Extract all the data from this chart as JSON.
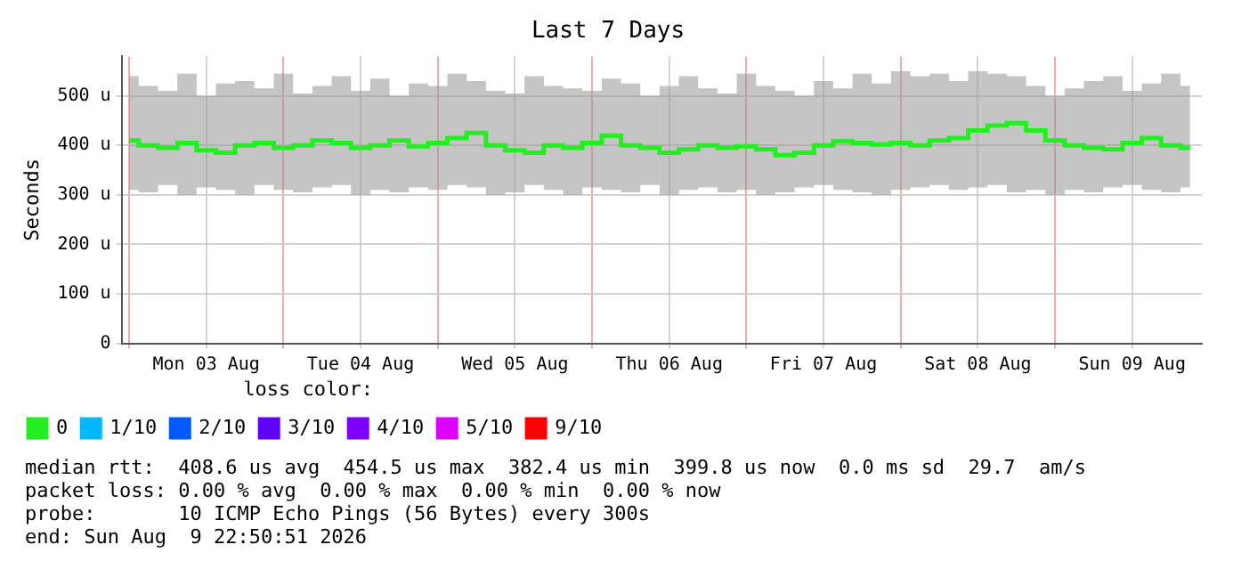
{
  "chart_data": {
    "type": "step",
    "title": "Last 7 Days",
    "ylabel": "Seconds",
    "legend_title": "loss color:",
    "legend": "bottom",
    "grid": true,
    "x": [
      "2026-08-03T00:00",
      "2026-08-03T03:00",
      "2026-08-03T06:00",
      "2026-08-03T09:00",
      "2026-08-03T12:00",
      "2026-08-03T15:00",
      "2026-08-03T18:00",
      "2026-08-03T21:00",
      "2026-08-04T00:00",
      "2026-08-04T03:00",
      "2026-08-04T06:00",
      "2026-08-04T09:00",
      "2026-08-04T12:00",
      "2026-08-04T15:00",
      "2026-08-04T18:00",
      "2026-08-04T21:00",
      "2026-08-05T00:00",
      "2026-08-05T03:00",
      "2026-08-05T06:00",
      "2026-08-05T09:00",
      "2026-08-05T12:00",
      "2026-08-05T15:00",
      "2026-08-05T18:00",
      "2026-08-05T21:00",
      "2026-08-06T00:00",
      "2026-08-06T03:00",
      "2026-08-06T06:00",
      "2026-08-06T09:00",
      "2026-08-06T12:00",
      "2026-08-06T15:00",
      "2026-08-06T18:00",
      "2026-08-06T21:00",
      "2026-08-07T00:00",
      "2026-08-07T03:00",
      "2026-08-07T06:00",
      "2026-08-07T09:00",
      "2026-08-07T12:00",
      "2026-08-07T15:00",
      "2026-08-07T18:00",
      "2026-08-07T21:00",
      "2026-08-08T00:00",
      "2026-08-08T03:00",
      "2026-08-08T06:00",
      "2026-08-08T09:00",
      "2026-08-08T12:00",
      "2026-08-08T15:00",
      "2026-08-08T18:00",
      "2026-08-08T21:00",
      "2026-08-09T00:00",
      "2026-08-09T03:00",
      "2026-08-09T06:00",
      "2026-08-09T09:00",
      "2026-08-09T12:00",
      "2026-08-09T15:00",
      "2026-08-09T18:00",
      "2026-08-09T21:00"
    ],
    "series": [
      {
        "name": "0",
        "color": "#22ee22",
        "values": [
          410,
          400,
          395,
          405,
          390,
          385,
          400,
          405,
          395,
          400,
          410,
          405,
          395,
          400,
          410,
          398,
          405,
          415,
          425,
          400,
          390,
          385,
          400,
          395,
          405,
          420,
          400,
          395,
          385,
          392,
          400,
          395,
          398,
          392,
          380,
          385,
          400,
          408,
          405,
          402,
          405,
          400,
          410,
          415,
          430,
          440,
          445,
          430,
          410,
          400,
          395,
          392,
          405,
          415,
          400,
          395
        ],
        "lower": [
          310,
          305,
          320,
          300,
          315,
          310,
          300,
          320,
          310,
          305,
          315,
          320,
          300,
          310,
          305,
          315,
          310,
          320,
          315,
          300,
          305,
          320,
          310,
          300,
          315,
          310,
          305,
          320,
          300,
          310,
          315,
          305,
          310,
          300,
          305,
          315,
          320,
          310,
          305,
          300,
          310,
          315,
          320,
          310,
          315,
          320,
          305,
          310,
          300,
          310,
          305,
          315,
          320,
          310,
          305,
          315
        ],
        "upper": [
          540,
          520,
          510,
          545,
          500,
          525,
          530,
          515,
          545,
          505,
          520,
          540,
          510,
          535,
          500,
          525,
          520,
          545,
          530,
          510,
          505,
          540,
          520,
          515,
          510,
          535,
          525,
          500,
          520,
          540,
          515,
          505,
          545,
          520,
          510,
          500,
          530,
          515,
          545,
          525,
          550,
          540,
          545,
          530,
          550,
          545,
          540,
          520,
          500,
          515,
          530,
          540,
          510,
          525,
          545,
          520
        ]
      },
      {
        "name": "1/10",
        "color": "#00b8ff",
        "values": [
          null,
          null,
          null,
          null,
          null,
          null,
          null,
          null,
          null,
          null,
          null,
          null,
          null,
          null,
          null,
          null,
          null,
          null,
          null,
          null,
          null,
          null,
          null,
          null,
          null,
          null,
          null,
          null,
          null,
          null,
          null,
          null,
          null,
          null,
          null,
          null,
          null,
          null,
          null,
          null,
          null,
          null,
          null,
          null,
          null,
          null,
          null,
          null,
          null,
          null,
          null,
          null,
          null,
          null,
          null,
          null
        ]
      },
      {
        "name": "2/10",
        "color": "#0059ff",
        "values": [
          null,
          null,
          null,
          null,
          null,
          null,
          null,
          null,
          null,
          null,
          null,
          null,
          null,
          null,
          null,
          null,
          null,
          null,
          null,
          null,
          null,
          null,
          null,
          null,
          null,
          null,
          null,
          null,
          null,
          null,
          null,
          null,
          null,
          null,
          null,
          null,
          null,
          null,
          null,
          null,
          null,
          null,
          null,
          null,
          null,
          null,
          null,
          null,
          null,
          null,
          null,
          null,
          null,
          null,
          null,
          null
        ]
      },
      {
        "name": "3/10",
        "color": "#5e00ff",
        "values": [
          null,
          null,
          null,
          null,
          null,
          null,
          null,
          null,
          null,
          null,
          null,
          null,
          null,
          null,
          null,
          null,
          null,
          null,
          null,
          null,
          null,
          null,
          null,
          null,
          null,
          null,
          null,
          null,
          null,
          null,
          null,
          null,
          null,
          null,
          null,
          null,
          null,
          null,
          null,
          null,
          null,
          null,
          null,
          null,
          null,
          null,
          null,
          null,
          null,
          null,
          null,
          null,
          null,
          null,
          null,
          null
        ]
      },
      {
        "name": "4/10",
        "color": "#7e00ff",
        "values": [
          null,
          null,
          null,
          null,
          null,
          null,
          null,
          null,
          null,
          null,
          null,
          null,
          null,
          null,
          null,
          null,
          null,
          null,
          null,
          null,
          null,
          null,
          null,
          null,
          null,
          null,
          null,
          null,
          null,
          null,
          null,
          null,
          null,
          null,
          null,
          null,
          null,
          null,
          null,
          null,
          null,
          null,
          null,
          null,
          null,
          null,
          null,
          null,
          null,
          null,
          null,
          null,
          null,
          null,
          null,
          null
        ]
      },
      {
        "name": "5/10",
        "color": "#dd00ff",
        "values": [
          null,
          null,
          null,
          null,
          null,
          null,
          null,
          null,
          null,
          null,
          null,
          null,
          null,
          null,
          null,
          null,
          null,
          null,
          null,
          null,
          null,
          null,
          null,
          null,
          null,
          null,
          null,
          null,
          null,
          null,
          null,
          null,
          null,
          null,
          null,
          null,
          null,
          null,
          null,
          null,
          null,
          null,
          null,
          null,
          null,
          null,
          null,
          null,
          null,
          null,
          null,
          null,
          null,
          null,
          null,
          null
        ]
      },
      {
        "name": "9/10",
        "color": "#ff0000",
        "values": [
          null,
          null,
          null,
          null,
          null,
          null,
          null,
          null,
          null,
          null,
          null,
          null,
          null,
          null,
          null,
          null,
          null,
          null,
          null,
          null,
          null,
          null,
          null,
          null,
          null,
          null,
          null,
          null,
          null,
          null,
          null,
          null,
          null,
          null,
          null,
          null,
          null,
          null,
          null,
          null,
          null,
          null,
          null,
          null,
          null,
          null,
          null,
          null,
          null,
          null,
          null,
          null,
          null,
          null,
          null,
          null
        ]
      }
    ],
    "xlim": [
      "2026-08-02T22:50",
      "2026-08-09T22:50"
    ],
    "xticks": [
      {
        "value": "2026-08-03T00:00",
        "label": null
      },
      {
        "value": "2026-08-03T12:00",
        "label": "Mon 03 Aug"
      },
      {
        "value": "2026-08-04T00:00",
        "label": null
      },
      {
        "value": "2026-08-04T12:00",
        "label": "Tue 04 Aug"
      },
      {
        "value": "2026-08-05T00:00",
        "label": null
      },
      {
        "value": "2026-08-05T12:00",
        "label": "Wed 05 Aug"
      },
      {
        "value": "2026-08-06T00:00",
        "label": null
      },
      {
        "value": "2026-08-06T12:00",
        "label": "Thu 06 Aug"
      },
      {
        "value": "2026-08-07T00:00",
        "label": null
      },
      {
        "value": "2026-08-07T12:00",
        "label": "Fri 07 Aug"
      },
      {
        "value": "2026-08-08T00:00",
        "label": null
      },
      {
        "value": "2026-08-08T12:00",
        "label": "Sat 08 Aug"
      },
      {
        "value": "2026-08-09T00:00",
        "label": null
      },
      {
        "value": "2026-08-09T12:00",
        "label": "Sun 09 Aug"
      }
    ],
    "ylim": [
      0,
      580
    ],
    "yticks": [
      0,
      {
        "value": 100,
        "label": "100 u"
      },
      {
        "value": 200,
        "label": "200 u"
      },
      {
        "value": 300,
        "label": "300 u"
      },
      {
        "value": 400,
        "label": "400 u"
      },
      {
        "value": 500,
        "label": "500 u"
      }
    ],
    "annotations": [
      "median rtt:  408.6 us avg  454.5 us max  382.4 us min  399.8 us now  0.0 ms sd  29.7  am/s",
      "packet loss: 0.00 % avg  0.00 % max  0.00 % min  0.00 % now",
      "probe:       10 ICMP Echo Pings (56 Bytes) every 300s",
      "end: Sun Aug  9 22:50:51 2026"
    ]
  }
}
